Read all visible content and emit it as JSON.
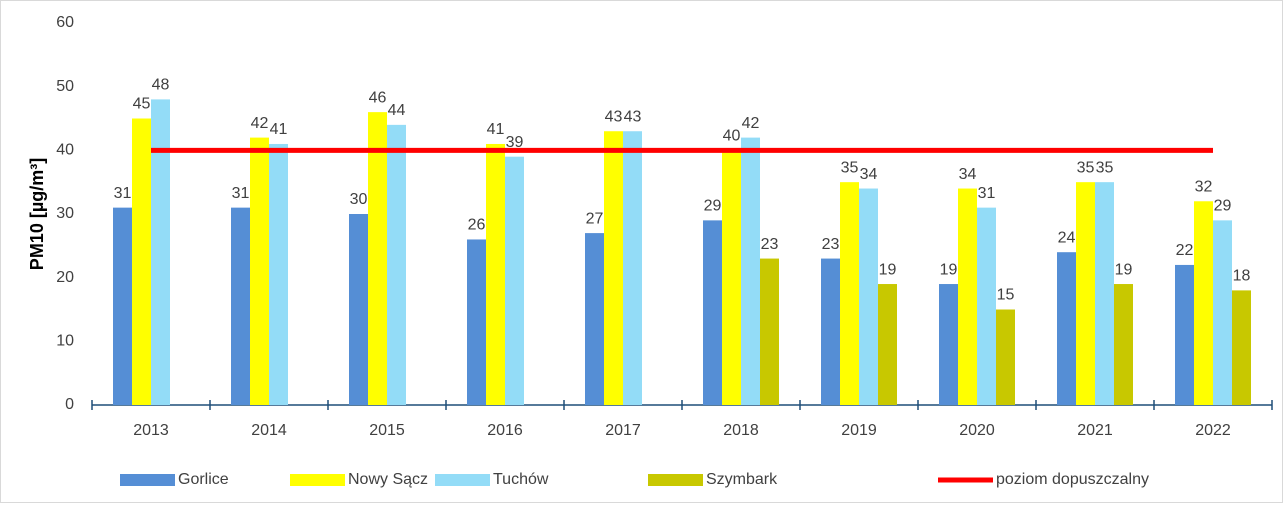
{
  "chart_data": {
    "type": "bar",
    "y_label": "PM10 [µg/m³]",
    "categories": [
      "2013",
      "2014",
      "2015",
      "2016",
      "2017",
      "2018",
      "2019",
      "2020",
      "2021",
      "2022"
    ],
    "series": [
      {
        "name": "Gorlice",
        "color": "#558ed5",
        "values": [
          31,
          31,
          30,
          26,
          27,
          29,
          23,
          19,
          24,
          22
        ]
      },
      {
        "name": "Nowy Sącz",
        "color": "#ffff00",
        "values": [
          45,
          42,
          46,
          41,
          43,
          40,
          35,
          34,
          35,
          32
        ]
      },
      {
        "name": "Tuchów",
        "color": "#93dcf7",
        "values": [
          48,
          41,
          44,
          39,
          43,
          42,
          34,
          31,
          35,
          29
        ]
      },
      {
        "name": "Szymbark",
        "color": "#c8c800",
        "values": [
          null,
          null,
          null,
          null,
          null,
          23,
          19,
          15,
          19,
          18
        ]
      },
      {
        "name": "poziom dopuszczalny",
        "color": "#ff0000",
        "type": "line",
        "values": [
          40,
          40,
          40,
          40,
          40,
          40,
          40,
          40,
          40,
          40
        ]
      }
    ],
    "ylim": [
      0,
      60
    ],
    "yticks": [
      0,
      10,
      20,
      30,
      40,
      50,
      60
    ],
    "grid": false,
    "legend": "bottom"
  }
}
